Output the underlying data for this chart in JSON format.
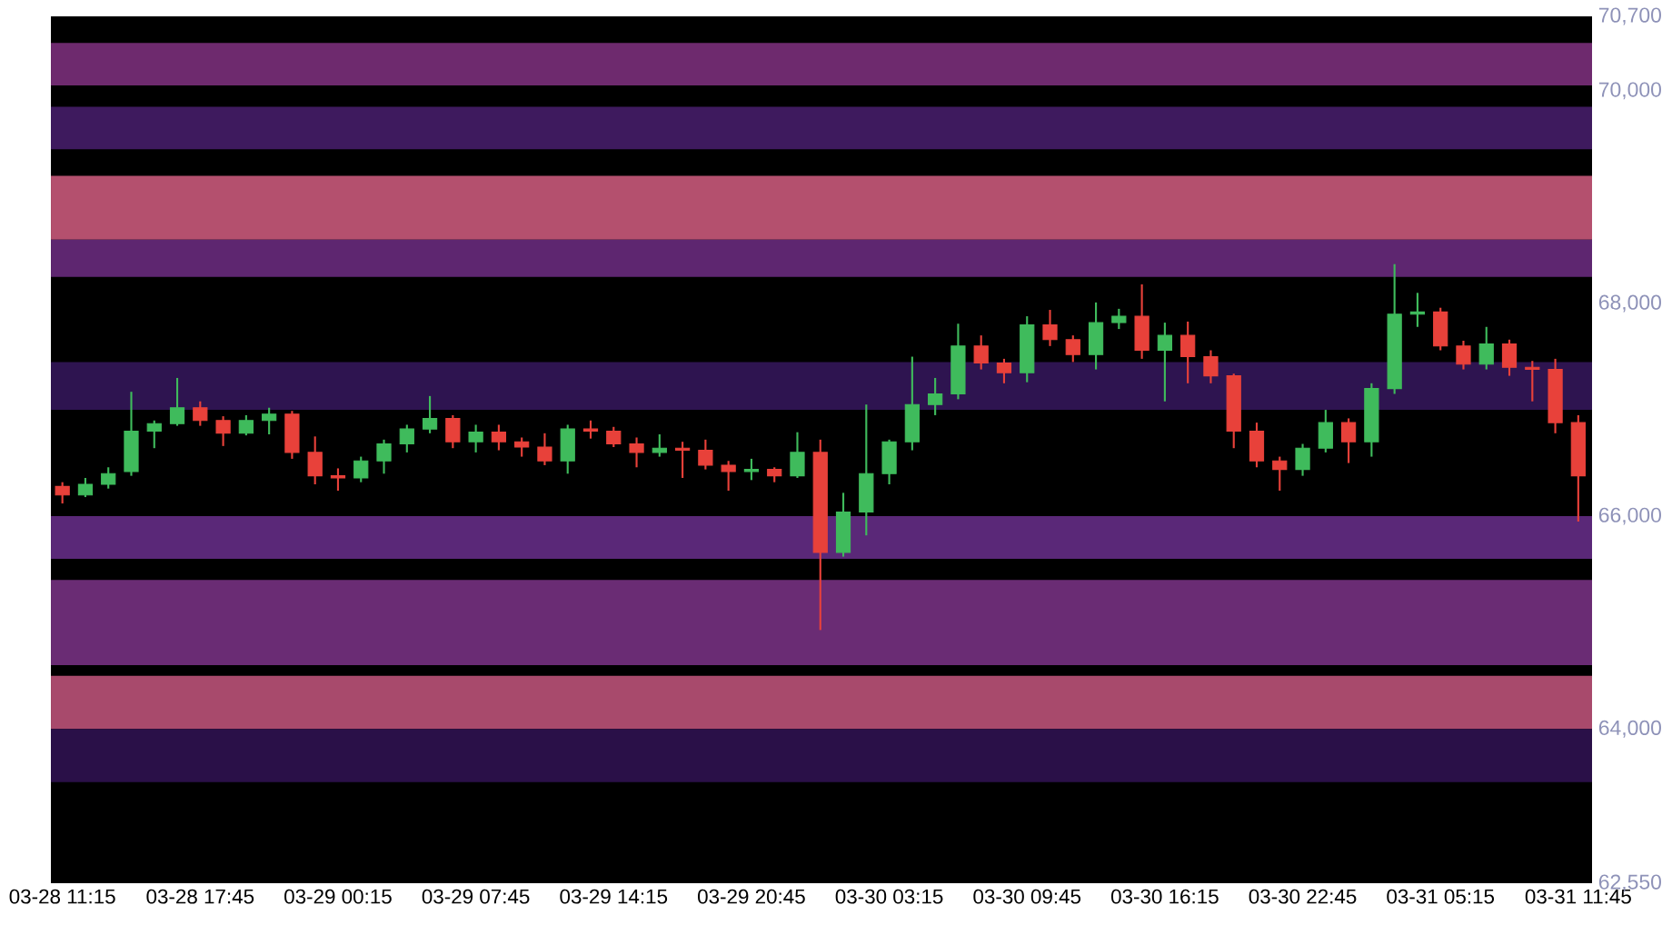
{
  "chart_data": {
    "type": "candlestick",
    "categories": [
      "03-28 11:15",
      null,
      null,
      null,
      null,
      null,
      "03-28 17:45",
      null,
      null,
      null,
      null,
      null,
      "03-29 00:15",
      null,
      null,
      null,
      null,
      null,
      "03-29 07:45",
      null,
      null,
      null,
      null,
      null,
      "03-29 14:15",
      null,
      null,
      null,
      null,
      null,
      "03-29 20:45",
      null,
      null,
      null,
      null,
      null,
      "03-30 03:15",
      null,
      null,
      null,
      null,
      null,
      "03-30 09:45",
      null,
      null,
      null,
      null,
      null,
      "03-30 16:15",
      null,
      null,
      null,
      null,
      null,
      "03-30 22:45",
      null,
      null,
      null,
      null,
      null,
      "03-31 05:15",
      null,
      null,
      null,
      null,
      null,
      "03-31 11:45"
    ],
    "ohlc": [
      [
        66280,
        66320,
        66120,
        66200
      ],
      [
        66200,
        66360,
        66180,
        66300
      ],
      [
        66300,
        66460,
        66260,
        66400
      ],
      [
        66420,
        67170,
        66380,
        66800
      ],
      [
        66800,
        66900,
        66640,
        66870
      ],
      [
        66870,
        67300,
        66850,
        67020
      ],
      [
        67020,
        67080,
        66850,
        66900
      ],
      [
        66900,
        66940,
        66660,
        66780
      ],
      [
        66780,
        66950,
        66760,
        66900
      ],
      [
        66900,
        67020,
        66770,
        66960
      ],
      [
        66960,
        66990,
        66540,
        66600
      ],
      [
        66600,
        66750,
        66300,
        66380
      ],
      [
        66380,
        66450,
        66240,
        66360
      ],
      [
        66360,
        66560,
        66320,
        66520
      ],
      [
        66520,
        66720,
        66400,
        66680
      ],
      [
        66680,
        66860,
        66600,
        66820
      ],
      [
        66820,
        67130,
        66780,
        66920
      ],
      [
        66920,
        66950,
        66640,
        66700
      ],
      [
        66700,
        66860,
        66600,
        66790
      ],
      [
        66790,
        66860,
        66620,
        66700
      ],
      [
        66700,
        66740,
        66560,
        66650
      ],
      [
        66650,
        66780,
        66480,
        66520
      ],
      [
        66520,
        66860,
        66400,
        66820
      ],
      [
        66820,
        66900,
        66730,
        66800
      ],
      [
        66800,
        66840,
        66650,
        66680
      ],
      [
        66680,
        66740,
        66460,
        66600
      ],
      [
        66600,
        66770,
        66560,
        66640
      ],
      [
        66640,
        66700,
        66360,
        66620
      ],
      [
        66620,
        66720,
        66440,
        66480
      ],
      [
        66480,
        66520,
        66240,
        66420
      ],
      [
        66420,
        66540,
        66340,
        66440
      ],
      [
        66440,
        66460,
        66320,
        66380
      ],
      [
        66380,
        66790,
        66360,
        66600
      ],
      [
        66600,
        66720,
        64930,
        65660
      ],
      [
        65660,
        66220,
        65620,
        66040
      ],
      [
        66040,
        67050,
        65820,
        66400
      ],
      [
        66400,
        66720,
        66300,
        66700
      ],
      [
        66700,
        67500,
        66620,
        67050
      ],
      [
        67050,
        67300,
        66950,
        67150
      ],
      [
        67150,
        67810,
        67100,
        67600
      ],
      [
        67600,
        67700,
        67380,
        67440
      ],
      [
        67440,
        67480,
        67250,
        67350
      ],
      [
        67350,
        67880,
        67260,
        67800
      ],
      [
        67800,
        67940,
        67600,
        67660
      ],
      [
        67660,
        67700,
        67450,
        67520
      ],
      [
        67520,
        68010,
        67380,
        67820
      ],
      [
        67820,
        67950,
        67760,
        67880
      ],
      [
        67880,
        68180,
        67480,
        67560
      ],
      [
        67560,
        67820,
        67080,
        67700
      ],
      [
        67700,
        67830,
        67250,
        67500
      ],
      [
        67500,
        67560,
        67250,
        67320
      ],
      [
        67320,
        67340,
        66640,
        66800
      ],
      [
        66800,
        66880,
        66460,
        66520
      ],
      [
        66520,
        66560,
        66240,
        66440
      ],
      [
        66440,
        66680,
        66380,
        66640
      ],
      [
        66640,
        67000,
        66600,
        66880
      ],
      [
        66880,
        66920,
        66500,
        66700
      ],
      [
        66700,
        67250,
        66560,
        67200
      ],
      [
        67200,
        68370,
        67150,
        67900
      ],
      [
        67900,
        68100,
        67780,
        67920
      ],
      [
        67920,
        67960,
        67560,
        67600
      ],
      [
        67600,
        67650,
        67380,
        67430
      ],
      [
        67430,
        67780,
        67380,
        67620
      ],
      [
        67620,
        67660,
        67320,
        67400
      ],
      [
        67400,
        67460,
        67080,
        67380
      ],
      [
        67380,
        67480,
        66780,
        66880
      ],
      [
        66880,
        66950,
        65950,
        66380
      ]
    ],
    "colors": [
      "#e8413a",
      "#3fbb5c",
      "#3fbb5c",
      "#3fbb5c",
      "#3fbb5c",
      "#3fbb5c",
      "#e8413a",
      "#e8413a",
      "#3fbb5c",
      "#3fbb5c",
      "#e8413a",
      "#e8413a",
      "#e8413a",
      "#3fbb5c",
      "#3fbb5c",
      "#3fbb5c",
      "#3fbb5c",
      "#e8413a",
      "#3fbb5c",
      "#e8413a",
      "#e8413a",
      "#e8413a",
      "#3fbb5c",
      "#e8413a",
      "#e8413a",
      "#e8413a",
      "#3fbb5c",
      "#e8413a",
      "#e8413a",
      "#e8413a",
      "#3fbb5c",
      "#e8413a",
      "#3fbb5c",
      "#e8413a",
      "#3fbb5c",
      "#3fbb5c",
      "#3fbb5c",
      "#3fbb5c",
      "#3fbb5c",
      "#3fbb5c",
      "#e8413a",
      "#e8413a",
      "#3fbb5c",
      "#e8413a",
      "#e8413a",
      "#3fbb5c",
      "#3fbb5c",
      "#e8413a",
      "#3fbb5c",
      "#e8413a",
      "#e8413a",
      "#e8413a",
      "#e8413a",
      "#e8413a",
      "#3fbb5c",
      "#3fbb5c",
      "#e8413a",
      "#3fbb5c",
      "#3fbb5c",
      "#3fbb5c",
      "#e8413a",
      "#e8413a",
      "#3fbb5c",
      "#e8413a",
      "#e8413a",
      "#e8413a",
      "#e8413a"
    ],
    "ylim": [
      62550,
      70700
    ],
    "yticks": [
      {
        "value": 62550,
        "label": "62,550"
      },
      {
        "value": 64000,
        "label": "64,000"
      },
      {
        "value": 66000,
        "label": "66,000"
      },
      {
        "value": 68000,
        "label": "68,000"
      },
      {
        "value": 70000,
        "label": "70,000"
      },
      {
        "value": 70700,
        "label": "70,700"
      }
    ],
    "bands": [
      {
        "axis": "y",
        "from": 70050,
        "to": 70450,
        "color": "#6e2a6e"
      },
      {
        "axis": "y",
        "from": 69450,
        "to": 69850,
        "color": "#3e1a5e"
      },
      {
        "axis": "y",
        "from": 68600,
        "to": 69200,
        "color": "#b4506e"
      },
      {
        "axis": "y",
        "from": 68250,
        "to": 68600,
        "color": "#5e2670"
      },
      {
        "axis": "y",
        "from": 67000,
        "to": 67450,
        "color": "#2e1450"
      },
      {
        "axis": "y",
        "from": 65600,
        "to": 66000,
        "color": "#5a2878"
      },
      {
        "axis": "y",
        "from": 64600,
        "to": 65400,
        "color": "#6a2c74"
      },
      {
        "axis": "y",
        "from": 64000,
        "to": 64500,
        "color": "#a84a6c"
      },
      {
        "axis": "y",
        "from": 63500,
        "to": 64000,
        "color": "#2a1048"
      }
    ]
  }
}
